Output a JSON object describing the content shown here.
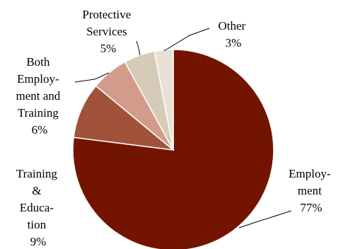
{
  "chart_data": {
    "type": "pie",
    "title": "",
    "start_angle_deg": 0,
    "direction": "clockwise",
    "legend": "none",
    "slices": [
      {
        "key": "employment",
        "lines": [
          "Employ-",
          "ment",
          "77%"
        ],
        "value": 77,
        "color": "#731400"
      },
      {
        "key": "training",
        "lines": [
          "Training",
          "&",
          "Educa-",
          "tion",
          "9%"
        ],
        "value": 9,
        "color": "#A0523A"
      },
      {
        "key": "both",
        "lines": [
          "Both",
          "Employ-",
          "ment and",
          "Training",
          "6%"
        ],
        "value": 6,
        "color": "#D39C8A"
      },
      {
        "key": "protective",
        "lines": [
          "Protective",
          "Services",
          "5%"
        ],
        "value": 5,
        "color": "#D6CAB8"
      },
      {
        "key": "other",
        "lines": [
          "Other",
          "3%"
        ],
        "value": 3,
        "color": "#E8E2D6"
      }
    ]
  }
}
